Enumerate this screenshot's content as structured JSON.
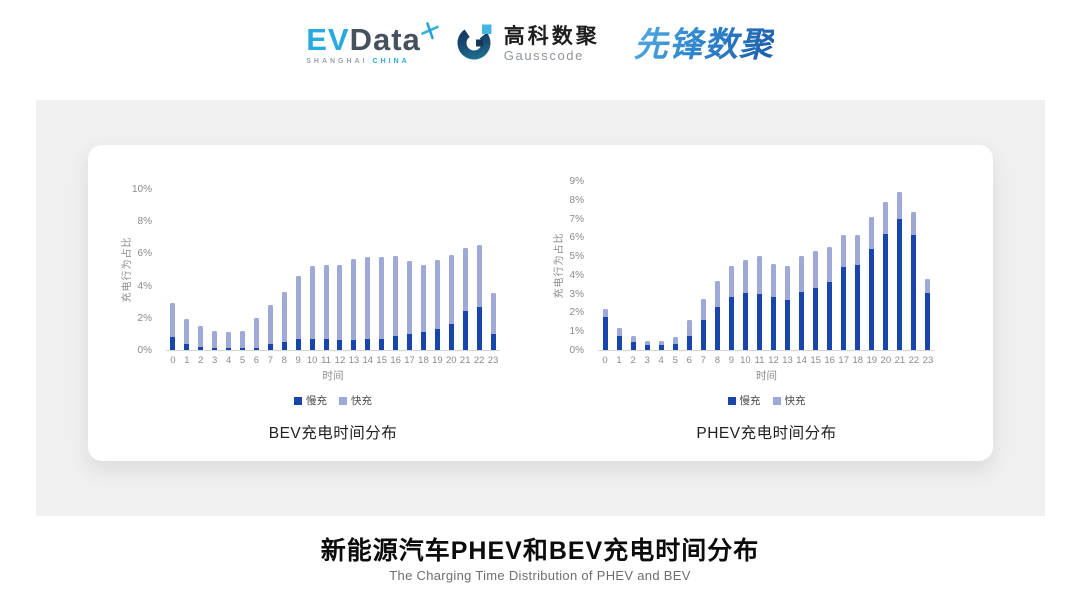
{
  "header": {
    "evdata": {
      "part1": "EV",
      "part2": "Data",
      "sub_gray": "SHANGHAI",
      "sub_blue": "CHINA"
    },
    "gausscode": {
      "name_cn": "高科数聚",
      "name_en": "Gausscode"
    },
    "pioneer": {
      "name": "先锋数聚"
    }
  },
  "chart_data": [
    {
      "type": "bar",
      "stacked": true,
      "title": "BEV充电时间分布",
      "xlabel": "时间",
      "ylabel": "充电行为占比",
      "ylim": [
        0,
        10
      ],
      "ytick_step": 2,
      "ytick_suffix": "%",
      "grid": false,
      "legend_position": "bottom",
      "categories": [
        0,
        1,
        2,
        3,
        4,
        5,
        6,
        7,
        8,
        9,
        10,
        11,
        12,
        13,
        14,
        15,
        16,
        17,
        18,
        19,
        20,
        21,
        22,
        23
      ],
      "series": [
        {
          "name": "慢充",
          "color": "#1745ab",
          "values": [
            0.8,
            0.35,
            0.2,
            0.1,
            0.1,
            0.1,
            0.15,
            0.35,
            0.5,
            0.7,
            0.7,
            0.7,
            0.6,
            0.6,
            0.7,
            0.7,
            0.85,
            1.0,
            1.1,
            1.3,
            1.6,
            2.4,
            2.7,
            1.0
          ]
        },
        {
          "name": "快充",
          "color": "#9ea9d8",
          "values": [
            2.1,
            1.55,
            1.3,
            1.1,
            1.0,
            1.1,
            1.85,
            2.45,
            3.1,
            3.9,
            4.5,
            4.55,
            4.65,
            5.05,
            5.1,
            5.1,
            5.0,
            4.5,
            4.2,
            4.3,
            4.3,
            3.95,
            3.85,
            2.55
          ]
        }
      ]
    },
    {
      "type": "bar",
      "stacked": true,
      "title": "PHEV充电时间分布",
      "xlabel": "时间",
      "ylabel": "充电行为占比",
      "ylim": [
        0,
        9
      ],
      "ytick_step": 1,
      "ytick_suffix": "%",
      "grid": false,
      "legend_position": "bottom",
      "categories": [
        0,
        1,
        2,
        3,
        4,
        5,
        6,
        7,
        8,
        9,
        10,
        11,
        12,
        13,
        14,
        15,
        16,
        17,
        18,
        19,
        20,
        21,
        22,
        23
      ],
      "series": [
        {
          "name": "慢充",
          "color": "#1745ab",
          "values": [
            1.75,
            0.75,
            0.45,
            0.25,
            0.25,
            0.3,
            0.75,
            1.6,
            2.3,
            2.8,
            3.05,
            3.0,
            2.8,
            2.65,
            3.1,
            3.3,
            3.6,
            4.4,
            4.55,
            5.4,
            6.2,
            7.0,
            6.15,
            3.05
          ]
        },
        {
          "name": "快充",
          "color": "#9ea9d8",
          "values": [
            0.45,
            0.4,
            0.3,
            0.25,
            0.25,
            0.4,
            0.85,
            1.1,
            1.35,
            1.7,
            1.75,
            2.0,
            1.8,
            1.85,
            1.9,
            1.95,
            1.9,
            1.7,
            1.55,
            1.7,
            1.7,
            1.4,
            1.2,
            0.75
          ]
        }
      ]
    }
  ],
  "footer": {
    "title": "新能源汽车PHEV和BEV充电时间分布",
    "subtitle": "The Charging Time Distribution of PHEV and BEV"
  }
}
